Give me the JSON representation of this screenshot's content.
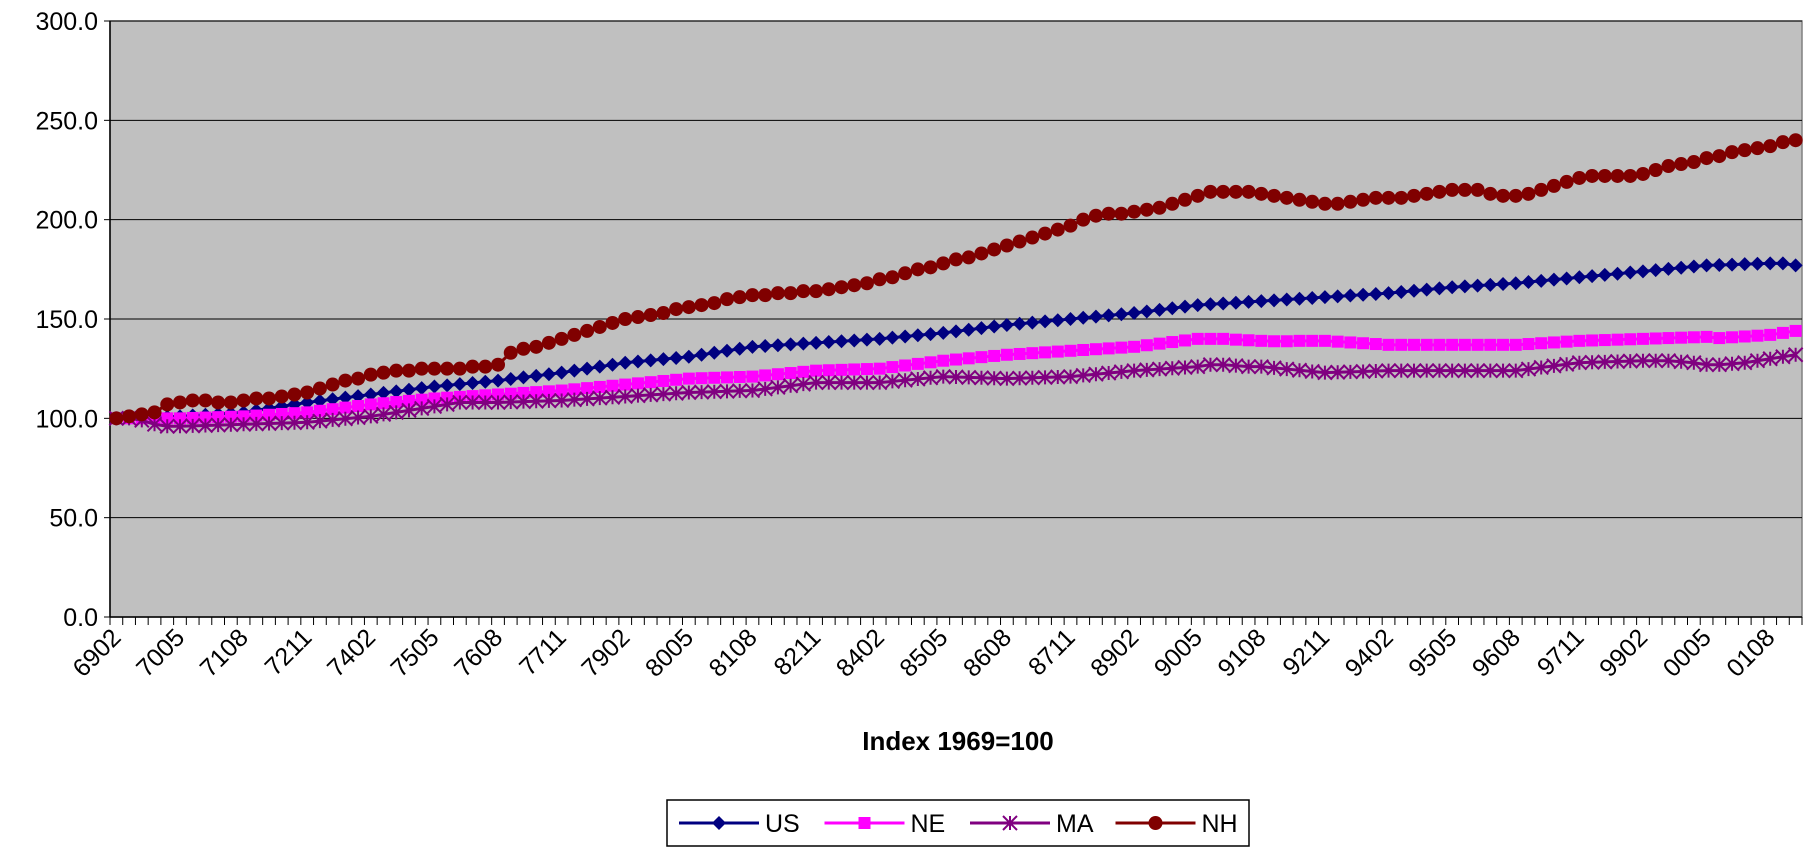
{
  "chart_data": {
    "type": "line",
    "xlabel": "Index 1969=100",
    "legend": "bottom",
    "grid": true,
    "plot_background": "#c0c0c0",
    "categories": [
      "6902",
      null,
      null,
      null,
      null,
      "7005",
      null,
      null,
      null,
      null,
      "7108",
      null,
      null,
      null,
      null,
      "7211",
      null,
      null,
      null,
      null,
      "7402",
      null,
      null,
      null,
      null,
      "7505",
      null,
      null,
      null,
      null,
      "7608",
      null,
      null,
      null,
      null,
      "7711",
      null,
      null,
      null,
      null,
      "7902",
      null,
      null,
      null,
      null,
      "8005",
      null,
      null,
      null,
      null,
      "8108",
      null,
      null,
      null,
      null,
      "8211",
      null,
      null,
      null,
      null,
      "8402",
      null,
      null,
      null,
      null,
      "8505",
      null,
      null,
      null,
      null,
      "8608",
      null,
      null,
      null,
      null,
      "8711",
      null,
      null,
      null,
      null,
      "8902",
      null,
      null,
      null,
      null,
      "9005",
      null,
      null,
      null,
      null,
      "9108",
      null,
      null,
      null,
      null,
      "9211",
      null,
      null,
      null,
      null,
      "9402",
      null,
      null,
      null,
      null,
      "9505",
      null,
      null,
      null,
      null,
      "9608",
      null,
      null,
      null,
      null,
      "9711",
      null,
      null,
      null,
      null,
      "9902",
      null,
      null,
      null,
      null,
      "0005",
      null,
      null,
      null,
      null,
      "0108",
      null,
      null
    ],
    "ylim": [
      0,
      300
    ],
    "yticks": [
      {
        "value": 0,
        "label": "0.0"
      },
      {
        "value": 50,
        "label": "50.0"
      },
      {
        "value": 100,
        "label": "100.0"
      },
      {
        "value": 150,
        "label": "150.0"
      },
      {
        "value": 200,
        "label": "200.0"
      },
      {
        "value": 250,
        "label": "250.0"
      },
      {
        "value": 300,
        "label": "300.0"
      }
    ],
    "series": [
      {
        "name": "US",
        "color": "#000080",
        "marker": "diamond",
        "values": [
          100,
          100.2,
          100.4,
          100.6,
          100.8,
          101,
          101.4,
          101.8,
          102.2,
          102.6,
          103,
          104,
          105,
          106,
          107,
          108,
          108.8,
          109.6,
          110.4,
          111.2,
          112,
          112.8,
          113.6,
          114.4,
          115.2,
          116,
          116.6,
          117.2,
          117.8,
          118.4,
          119,
          119.8,
          120.6,
          121.4,
          122.2,
          123,
          124,
          125,
          126,
          127,
          128,
          128.6,
          129.2,
          129.8,
          130.4,
          131,
          132,
          133,
          134,
          135,
          136,
          136.4,
          136.8,
          137.2,
          137.6,
          138,
          138.4,
          138.8,
          139.2,
          139.6,
          140,
          140.6,
          141.2,
          141.8,
          142.4,
          143,
          143.8,
          144.6,
          145.4,
          146.2,
          147,
          147.6,
          148.2,
          148.8,
          149.4,
          150,
          150.6,
          151.2,
          151.8,
          152.4,
          153,
          153.8,
          154.6,
          155.4,
          156.2,
          157,
          157.4,
          157.8,
          158.2,
          158.6,
          159,
          159.4,
          159.8,
          160.2,
          160.6,
          161,
          161.4,
          161.8,
          162.2,
          162.6,
          163,
          163.6,
          164.2,
          164.8,
          165.4,
          166,
          166.4,
          166.8,
          167.2,
          167.6,
          168,
          168.6,
          169.2,
          169.8,
          170.4,
          171,
          171.6,
          172.2,
          172.8,
          173.4,
          174,
          174.6,
          175.2,
          175.8,
          176.4,
          177,
          177.2,
          177.4,
          177.6,
          177.8,
          178,
          178,
          177
        ]
      },
      {
        "name": "NE",
        "color": "#ff00ff",
        "marker": "square",
        "values": [
          100,
          100,
          100,
          100,
          100,
          100,
          100.2,
          100.4,
          100.6,
          100.8,
          101,
          101.4,
          101.8,
          102.2,
          102.6,
          103,
          103.8,
          104.6,
          105.4,
          106.2,
          107,
          107.6,
          108.2,
          108.8,
          109.4,
          110,
          110.4,
          110.8,
          111.2,
          111.6,
          112,
          112.4,
          112.8,
          113.2,
          113.6,
          114,
          114.6,
          115.2,
          115.8,
          116.4,
          117,
          117.6,
          118.2,
          118.8,
          119.4,
          120,
          120.2,
          120.4,
          120.6,
          120.8,
          121,
          121.6,
          122.2,
          122.8,
          123.4,
          124,
          124.2,
          124.4,
          124.6,
          124.8,
          125,
          125.8,
          126.6,
          127.4,
          128.2,
          129,
          129.6,
          130.2,
          130.8,
          131.4,
          132,
          132.4,
          132.8,
          133.2,
          133.6,
          134,
          134.4,
          134.8,
          135.2,
          135.6,
          136,
          136.8,
          137.6,
          138.4,
          139.2,
          140,
          140,
          140,
          139.6,
          139.3,
          139,
          138.8,
          138.8,
          139,
          139,
          139,
          138.6,
          138.2,
          137.8,
          137.4,
          137,
          137,
          137,
          137,
          137,
          137,
          137,
          137,
          137,
          137,
          137,
          137.4,
          137.8,
          138.2,
          138.6,
          139,
          139.2,
          139.4,
          139.6,
          139.8,
          140,
          140.2,
          140.4,
          140.6,
          140.8,
          141,
          140.4,
          140.8,
          141.2,
          141.6,
          142,
          143,
          144
        ]
      },
      {
        "name": "MA",
        "color": "#800080",
        "marker": "star",
        "values": [
          100,
          100,
          99,
          97,
          96,
          96,
          96.2,
          96.4,
          96.6,
          96.8,
          97,
          97.2,
          97.4,
          97.6,
          97.8,
          98,
          98.6,
          99.2,
          99.8,
          100.4,
          101,
          102,
          103,
          104,
          105,
          106,
          107,
          108,
          108,
          108,
          108,
          108.2,
          108.4,
          108.6,
          108.8,
          109,
          109.4,
          109.8,
          110.2,
          110.6,
          111,
          111.4,
          111.8,
          112.2,
          112.6,
          113,
          113.2,
          113.4,
          113.6,
          113.8,
          114,
          114.8,
          115.6,
          116.4,
          117.2,
          118,
          118,
          118,
          118,
          118,
          118,
          118.6,
          119.2,
          119.8,
          120.4,
          121,
          120.8,
          120.6,
          120.4,
          120.2,
          120,
          120.2,
          120.4,
          120.6,
          120.8,
          121,
          121.6,
          122.2,
          122.8,
          123.4,
          124,
          124.4,
          124.8,
          125.2,
          125.6,
          126,
          127,
          127,
          126.5,
          126,
          126,
          125.4,
          124.8,
          124.2,
          123.6,
          123,
          123.2,
          123.4,
          123.6,
          123.8,
          124,
          124,
          124,
          124,
          124,
          124,
          124,
          124,
          124,
          124,
          124,
          124.8,
          125.6,
          126.4,
          127.2,
          128,
          128.2,
          128.4,
          128.6,
          128.8,
          129,
          129,
          129,
          128.5,
          128,
          127,
          127,
          127.5,
          128,
          129,
          130,
          131,
          132
        ]
      },
      {
        "name": "NH",
        "color": "#800000",
        "marker": "circle",
        "values": [
          100,
          101,
          102,
          103,
          107,
          108,
          109,
          109,
          108,
          108,
          109,
          110,
          110,
          111,
          112,
          113,
          115,
          117,
          119,
          120,
          122,
          123,
          124,
          124,
          125,
          125,
          125,
          125,
          126,
          126,
          127,
          133,
          135,
          136,
          138,
          140,
          142,
          144,
          146,
          148,
          150,
          151,
          152,
          153,
          155,
          156,
          157,
          158,
          160,
          161,
          162,
          162,
          163,
          163,
          164,
          164,
          165,
          166,
          167,
          168,
          170,
          171,
          173,
          175,
          176,
          178,
          180,
          181,
          183,
          185,
          187,
          189,
          191,
          193,
          195,
          197,
          200,
          202,
          203,
          203,
          204,
          205,
          206,
          208,
          210,
          212,
          214,
          214,
          214,
          214,
          213,
          212,
          211,
          210,
          209,
          208,
          208,
          209,
          210,
          211,
          211,
          211,
          212,
          213,
          214,
          215,
          215,
          215,
          213,
          212,
          212,
          213,
          215,
          217,
          219,
          221,
          222,
          222,
          222,
          222,
          223,
          225,
          227,
          228,
          229,
          231,
          232,
          234,
          235,
          236,
          237,
          239,
          240
        ]
      }
    ]
  }
}
